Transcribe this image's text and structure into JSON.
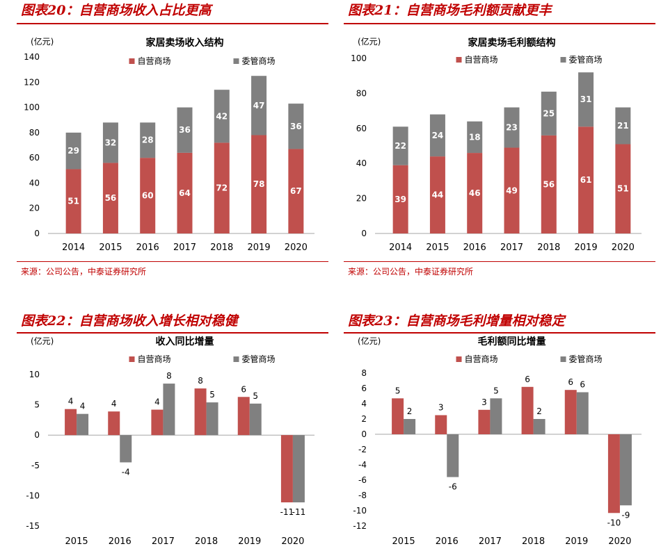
{
  "colors": {
    "self_run": "#c0504d",
    "consigned": "#808080",
    "accent": "#c00000",
    "axis": "#a6a6a6"
  },
  "panels": [
    {
      "heading": "图表20：自营商场收入占比更高",
      "source": "来源：公司公告，中泰证券研究所"
    },
    {
      "heading": "图表21：自营商场毛利额贡献更丰",
      "source": "来源：公司公告，中泰证券研究所"
    },
    {
      "heading": "图表22：自营商场收入增长相对稳健",
      "source": ""
    },
    {
      "heading": "图表23：自营商场毛利增量相对稳定",
      "source": ""
    }
  ],
  "chart_data": [
    {
      "type": "bar",
      "stacked": true,
      "title": "家居卖场收入结构",
      "unit": "(亿元)",
      "categories": [
        "2014",
        "2015",
        "2016",
        "2017",
        "2018",
        "2019",
        "2020"
      ],
      "series": [
        {
          "name": "自营商场",
          "values": [
            51,
            56,
            60,
            64,
            72,
            78,
            67
          ]
        },
        {
          "name": "委管商场",
          "values": [
            29,
            32,
            28,
            36,
            42,
            47,
            36
          ]
        }
      ],
      "ylim": [
        0,
        140
      ],
      "yticks": [
        0,
        20,
        40,
        60,
        80,
        100,
        120,
        140
      ],
      "legend": "top"
    },
    {
      "type": "bar",
      "stacked": true,
      "title": "家居卖场毛利额结构",
      "unit": "(亿元)",
      "categories": [
        "2014",
        "2015",
        "2016",
        "2017",
        "2018",
        "2019",
        "2020"
      ],
      "series": [
        {
          "name": "自营商场",
          "values": [
            39,
            44,
            46,
            49,
            56,
            61,
            51
          ]
        },
        {
          "name": "委管商场",
          "values": [
            22,
            24,
            18,
            23,
            25,
            31,
            21
          ]
        }
      ],
      "ylim": [
        0,
        100
      ],
      "yticks": [
        0,
        20,
        40,
        60,
        80,
        100
      ],
      "legend": "top"
    },
    {
      "type": "bar",
      "stacked": false,
      "title": "收入同比增量",
      "unit": "(亿元)",
      "categories": [
        "2015",
        "2016",
        "2017",
        "2018",
        "2019",
        "2020"
      ],
      "series": [
        {
          "name": "自营商场",
          "values": [
            4.3,
            3.9,
            4.2,
            7.7,
            6.3,
            -11.1
          ],
          "labels": [
            "4",
            "4",
            "4",
            "8",
            "6",
            "-11"
          ]
        },
        {
          "name": "委管商场",
          "values": [
            3.5,
            -4.5,
            8.5,
            5.4,
            5.2,
            -11.1
          ],
          "labels": [
            "4",
            "-4",
            "8",
            "5",
            "5",
            "-11"
          ]
        }
      ],
      "ylim": [
        -15,
        10
      ],
      "yticks": [
        -15,
        -10,
        -5,
        0,
        5,
        10
      ],
      "legend": "top"
    },
    {
      "type": "bar",
      "stacked": false,
      "title": "毛利额同比增量",
      "unit": "(亿元)",
      "categories": [
        "2015",
        "2016",
        "2017",
        "2018",
        "2019",
        "2020"
      ],
      "series": [
        {
          "name": "自营商场",
          "values": [
            4.7,
            2.5,
            3.2,
            6.2,
            5.8,
            -10.3
          ],
          "labels": [
            "5",
            "3",
            "3",
            "6",
            "6",
            "-10"
          ]
        },
        {
          "name": "委管商场",
          "values": [
            2.0,
            -5.6,
            4.7,
            2.0,
            5.5,
            -9.3
          ],
          "labels": [
            "2",
            "-6",
            "5",
            "2",
            "6",
            "-9"
          ]
        }
      ],
      "ylim": [
        -12,
        8
      ],
      "yticks": [
        -12,
        -10,
        -8,
        -6,
        -4,
        -2,
        0,
        2,
        4,
        6,
        8
      ],
      "legend": "top"
    }
  ]
}
